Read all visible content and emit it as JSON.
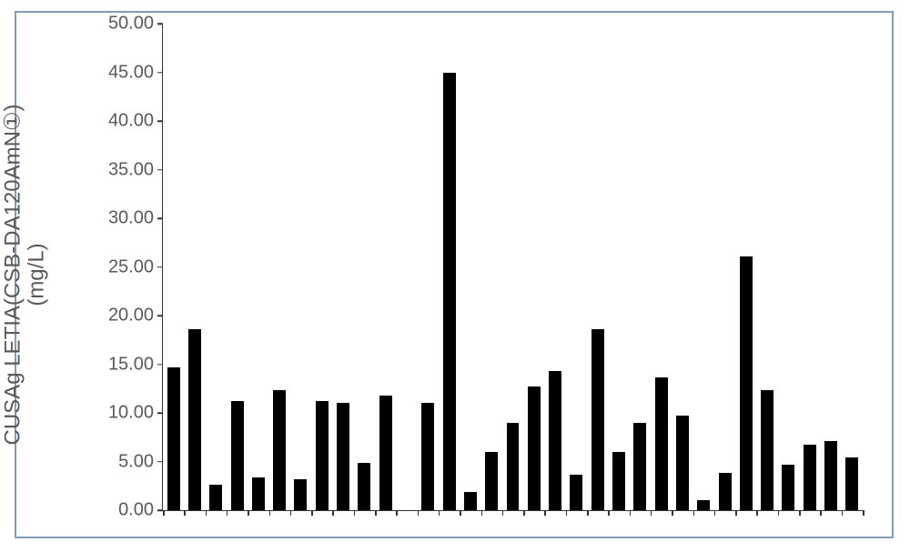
{
  "chart": {
    "type": "bar",
    "y_axis_label": "CUSAg LETIA(CSB-DA120AmN①)\n(mg/L)",
    "label_fontsize": 24,
    "label_color": "#595959",
    "tick_fontsize": 20,
    "tick_color": "#595959",
    "frame_border_color": "#7e9bc2",
    "axis_color": "#333333",
    "bar_color": "#000000",
    "background_color": "#ffffff",
    "ylim": [
      0,
      50
    ],
    "ytick_step": 5,
    "ytick_decimals": 2,
    "bar_width_ratio": 0.6,
    "values": [
      14.7,
      18.6,
      2.6,
      11.2,
      3.4,
      12.3,
      3.2,
      11.2,
      11.0,
      4.9,
      11.8,
      null,
      11.0,
      45.0,
      1.9,
      6.0,
      9.0,
      12.7,
      14.3,
      3.6,
      18.6,
      6.0,
      9.0,
      13.6,
      9.7,
      1.0,
      3.8,
      26.1,
      12.3,
      4.7,
      6.7,
      7.1,
      5.4
    ]
  }
}
